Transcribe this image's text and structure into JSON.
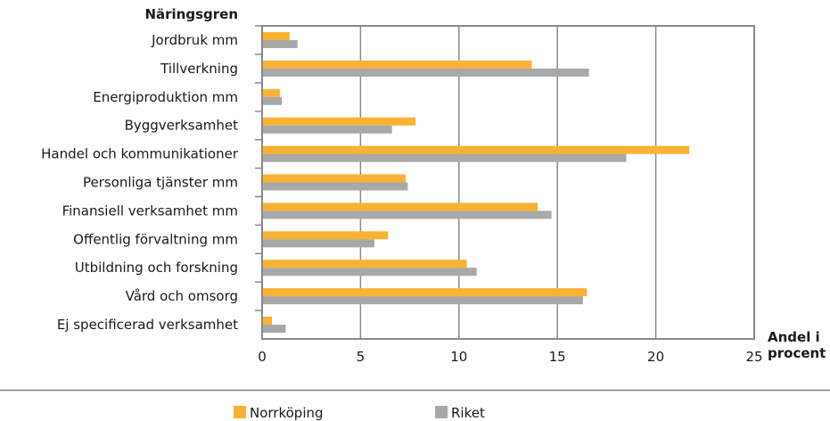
{
  "chart_data": {
    "type": "bar",
    "orientation": "horizontal",
    "ylabel": "Näringsgren",
    "xlabel": "Andel i procent",
    "xlabel_lines": [
      "Andel i",
      "procent"
    ],
    "xlim": [
      0,
      25
    ],
    "xticks": [
      0,
      5,
      10,
      15,
      20,
      25
    ],
    "grid": true,
    "legend_position": "bottom",
    "categories": [
      "Jordbruk mm",
      "Tillverkning",
      "Energiproduktion mm",
      "Byggverksamhet",
      "Handel och kommunikationer",
      "Personliga tjänster mm",
      "Finansiell verksamhet mm",
      "Offentlig förvaltning mm",
      "Utbildning och forskning",
      "Vård och omsorg",
      "Ej specificerad verksamhet"
    ],
    "series": [
      {
        "name": "Norrköping",
        "color": "#f9b234",
        "values": [
          1.4,
          13.7,
          0.9,
          7.8,
          21.7,
          7.3,
          14.0,
          6.4,
          10.4,
          16.5,
          0.5
        ]
      },
      {
        "name": "Riket",
        "color": "#a8a8a8",
        "values": [
          1.8,
          16.6,
          1.0,
          6.6,
          18.5,
          7.4,
          14.7,
          5.7,
          10.9,
          16.3,
          1.2
        ]
      }
    ]
  }
}
